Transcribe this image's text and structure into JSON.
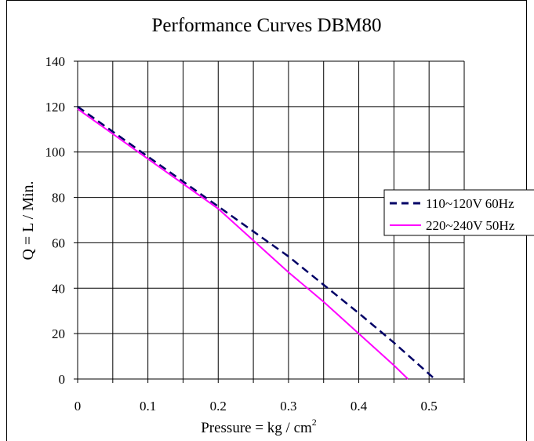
{
  "chart_data": {
    "type": "line",
    "title": "Performance Curves  DBM80",
    "xlabel": "Pressure = kg / cm",
    "xlabel_superscript": "2",
    "ylabel": "Q = L / Min.",
    "xlim": [
      0,
      0.55
    ],
    "ylim": [
      0,
      140
    ],
    "xticks": [
      "0",
      "0.1",
      "0.2",
      "0.3",
      "0.4",
      "0.5"
    ],
    "yticks": [
      "0",
      "20",
      "40",
      "60",
      "80",
      "100",
      "120",
      "140"
    ],
    "grid": true,
    "legend_position": "right",
    "series": [
      {
        "name": "110~120V 60Hz",
        "color": "#000066",
        "style": "dashed",
        "x": [
          0,
          0.1,
          0.2,
          0.3,
          0.4,
          0.45,
          0.508
        ],
        "y": [
          120,
          98,
          76,
          54,
          29,
          16,
          0
        ]
      },
      {
        "name": "220~240V 50Hz",
        "color": "#ff00ff",
        "style": "solid",
        "x": [
          0,
          0.1,
          0.2,
          0.25,
          0.3,
          0.35,
          0.4,
          0.45,
          0.47
        ],
        "y": [
          119,
          97,
          75,
          61,
          47,
          34,
          20,
          6,
          0
        ]
      }
    ]
  }
}
